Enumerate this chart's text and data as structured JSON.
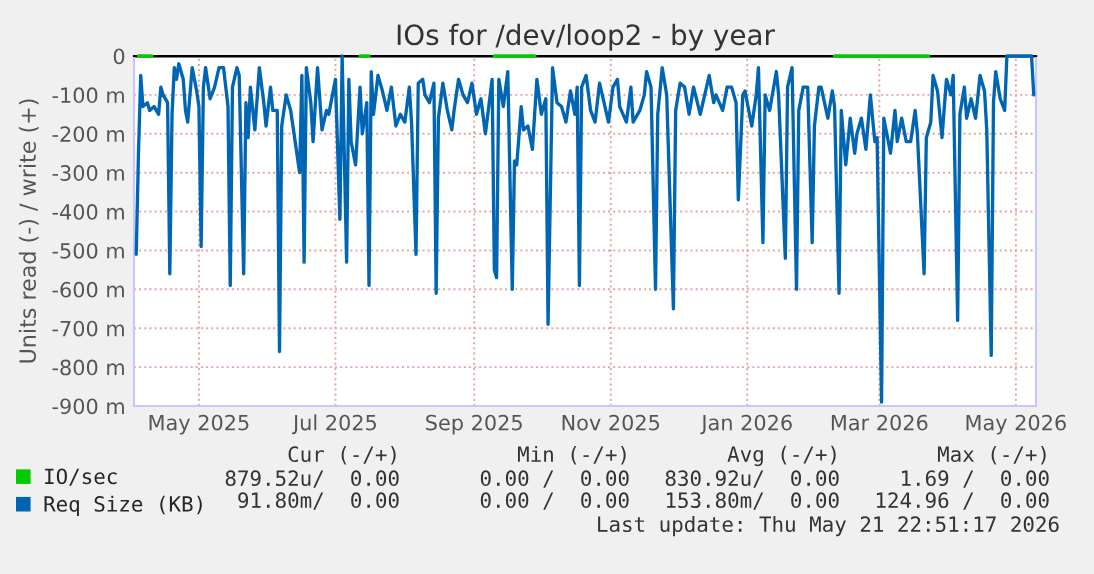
{
  "chart_data": {
    "type": "line",
    "title": "IOs for /dev/loop2 - by year",
    "ylabel": "Units read (-) / write (+)",
    "xlim": [
      "2025-04-17",
      "2026-05-25"
    ],
    "xticks": [
      {
        "value": "2025-05-16",
        "label": "May 2025"
      },
      {
        "value": "2025-07-16",
        "label": "Jul 2025"
      },
      {
        "value": "2025-09-16",
        "label": "Sep 2025"
      },
      {
        "value": "2025-11-16",
        "label": "Nov 2025"
      },
      {
        "value": "2026-01-16",
        "label": "Jan 2026"
      },
      {
        "value": "2026-03-16",
        "label": "Mar 2026"
      },
      {
        "value": "2026-05-16",
        "label": "May 2026"
      }
    ],
    "ylim": [
      -900,
      0
    ],
    "yticks": [
      {
        "value": -900,
        "label": "-900 m"
      },
      {
        "value": -800,
        "label": "-800 m"
      },
      {
        "value": -700,
        "label": "-700 m"
      },
      {
        "value": -600,
        "label": "-600 m"
      },
      {
        "value": -500,
        "label": "-500 m"
      },
      {
        "value": -400,
        "label": "-400 m"
      },
      {
        "value": -300,
        "label": "-300 m"
      },
      {
        "value": -200,
        "label": "-200 m"
      },
      {
        "value": -100,
        "label": "-100 m"
      },
      {
        "value": 0,
        "label": "0"
      }
    ],
    "grid": true,
    "legend": "bottom",
    "marker": "none",
    "line_style": "solid",
    "series": [
      {
        "name": "IO/sec",
        "color": "#00cc00",
        "x": [
          "2025-04-19",
          "2025-04-25",
          "2025-04-26",
          "2025-07-27",
          "2025-07-31",
          "2025-08-01",
          "2025-09-25",
          "2025-10-13",
          "2025-10-14",
          "2026-02-24",
          "2026-04-07"
        ],
        "values": [
          0,
          0,
          null,
          0,
          0,
          null,
          0,
          0,
          null,
          0,
          0
        ]
      },
      {
        "name": "Req Size (KB)",
        "color": "#0066b3",
        "x": [
          "2025-04-18",
          "2025-04-19",
          "2025-04-20",
          "2025-04-21",
          "2025-04-23",
          "2025-04-24",
          "2025-04-26",
          "2025-04-28",
          "2025-04-29",
          "2025-04-30",
          "2025-05-02",
          "2025-05-03",
          "2025-05-04",
          "2025-05-05",
          "2025-05-06",
          "2025-05-07",
          "2025-05-09",
          "2025-05-10",
          "2025-05-11",
          "2025-05-13",
          "2025-05-15",
          "2025-05-16",
          "2025-05-17",
          "2025-05-18",
          "2025-05-19",
          "2025-05-21",
          "2025-05-23",
          "2025-05-25",
          "2025-05-27",
          "2025-05-29",
          "2025-05-30",
          "2025-05-31",
          "2025-06-02",
          "2025-06-03",
          "2025-06-05",
          "2025-06-06",
          "2025-06-07",
          "2025-06-08",
          "2025-06-10",
          "2025-06-12",
          "2025-06-14",
          "2025-06-15",
          "2025-06-17",
          "2025-06-18",
          "2025-06-20",
          "2025-06-21",
          "2025-06-22",
          "2025-06-24",
          "2025-06-26",
          "2025-06-28",
          "2025-06-30",
          "2025-07-01",
          "2025-07-02",
          "2025-07-03",
          "2025-07-05",
          "2025-07-06",
          "2025-07-08",
          "2025-07-10",
          "2025-07-12",
          "2025-07-13",
          "2025-07-16",
          "2025-07-18",
          "2025-07-19",
          "2025-07-21",
          "2025-07-22",
          "2025-07-23",
          "2025-07-25",
          "2025-07-27",
          "2025-07-28",
          "2025-07-30",
          "2025-07-31",
          "2025-08-01",
          "2025-08-02",
          "2025-08-04",
          "2025-08-06",
          "2025-08-08",
          "2025-08-10",
          "2025-08-12",
          "2025-08-14",
          "2025-08-16",
          "2025-08-18",
          "2025-08-19",
          "2025-08-21",
          "2025-08-22",
          "2025-08-24",
          "2025-08-25",
          "2025-08-27",
          "2025-08-29",
          "2025-08-30",
          "2025-08-31",
          "2025-09-02",
          "2025-09-04",
          "2025-09-06",
          "2025-09-07",
          "2025-09-09",
          "2025-09-11",
          "2025-09-13",
          "2025-09-15",
          "2025-09-17",
          "2025-09-19",
          "2025-09-21",
          "2025-09-24",
          "2025-09-25",
          "2025-09-26",
          "2025-09-27",
          "2025-09-29",
          "2025-10-01",
          "2025-10-03",
          "2025-10-04",
          "2025-10-05",
          "2025-10-07",
          "2025-10-08",
          "2025-10-10",
          "2025-10-12",
          "2025-10-14",
          "2025-10-16",
          "2025-10-18",
          "2025-10-19",
          "2025-10-21",
          "2025-10-23",
          "2025-10-25",
          "2025-10-27",
          "2025-10-29",
          "2025-10-31",
          "2025-11-01",
          "2025-11-02",
          "2025-11-03",
          "2025-11-05",
          "2025-11-07",
          "2025-11-09",
          "2025-11-11",
          "2025-11-13",
          "2025-11-15",
          "2025-11-17",
          "2025-11-19",
          "2025-11-20",
          "2025-11-23",
          "2025-11-25",
          "2025-11-26",
          "2025-11-29",
          "2025-12-01",
          "2025-12-02",
          "2025-12-04",
          "2025-12-06",
          "2025-12-07",
          "2025-12-09",
          "2025-12-11",
          "2025-12-14",
          "2025-12-15",
          "2025-12-17",
          "2025-12-19",
          "2025-12-21",
          "2025-12-23",
          "2025-12-26",
          "2025-12-28",
          "2025-12-30",
          "2026-01-01",
          "2026-01-02",
          "2026-01-05",
          "2026-01-07",
          "2026-01-09",
          "2026-01-11",
          "2026-01-12",
          "2026-01-14",
          "2026-01-15",
          "2026-01-18",
          "2026-01-20",
          "2026-01-21",
          "2026-01-23",
          "2026-01-24",
          "2026-01-26",
          "2026-01-29",
          "2026-01-30",
          "2026-02-02",
          "2026-02-03",
          "2026-02-05",
          "2026-02-07",
          "2026-02-08",
          "2026-02-10",
          "2026-02-12",
          "2026-02-14",
          "2026-02-15",
          "2026-02-17",
          "2026-02-18",
          "2026-02-21",
          "2026-02-23",
          "2026-02-24",
          "2026-02-26",
          "2026-02-27",
          "2026-03-01",
          "2026-03-03",
          "2026-03-05",
          "2026-03-06",
          "2026-03-08",
          "2026-03-10",
          "2026-03-12",
          "2026-03-14",
          "2026-03-15",
          "2026-03-17",
          "2026-03-18",
          "2026-03-20",
          "2026-03-21",
          "2026-03-23",
          "2026-03-24",
          "2026-03-26",
          "2026-03-28",
          "2026-03-30",
          "2026-04-01",
          "2026-04-02",
          "2026-04-05",
          "2026-04-06",
          "2026-04-08",
          "2026-04-09",
          "2026-04-11",
          "2026-04-13",
          "2026-04-15",
          "2026-04-17",
          "2026-04-18",
          "2026-04-20",
          "2026-04-21",
          "2026-04-23",
          "2026-04-24",
          "2026-04-26",
          "2026-04-28",
          "2026-04-30",
          "2026-05-02",
          "2026-05-03",
          "2026-05-05",
          "2026-05-06",
          "2026-05-07",
          "2026-05-09",
          "2026-05-11",
          "2026-05-12",
          "2026-05-23",
          "2026-05-24"
        ],
        "values": [
          -510,
          -250,
          -50,
          -130,
          -120,
          -140,
          -130,
          -150,
          -80,
          -100,
          -120,
          -560,
          -150,
          -30,
          -60,
          -20,
          -60,
          -140,
          -170,
          -30,
          -90,
          -130,
          -490,
          -80,
          -30,
          -110,
          -80,
          -30,
          -30,
          -130,
          -590,
          -80,
          -30,
          -50,
          -560,
          -120,
          -210,
          -80,
          -190,
          -30,
          -120,
          -180,
          -80,
          -140,
          -140,
          -760,
          -180,
          -100,
          -140,
          -220,
          -300,
          -50,
          -530,
          -30,
          -120,
          -220,
          -30,
          -190,
          -140,
          -150,
          -60,
          -420,
          0,
          -530,
          -60,
          -220,
          -280,
          -80,
          -200,
          -120,
          -590,
          -40,
          -150,
          -50,
          -90,
          -140,
          -80,
          -180,
          -150,
          -170,
          -80,
          -170,
          -510,
          -70,
          -60,
          -100,
          -120,
          -70,
          -610,
          -160,
          -70,
          -140,
          -190,
          -140,
          -60,
          -100,
          -120,
          -70,
          -150,
          -110,
          -200,
          -60,
          -550,
          -570,
          -60,
          -130,
          -40,
          -600,
          -270,
          -280,
          -130,
          -190,
          -180,
          -240,
          -60,
          -150,
          -110,
          -690,
          -30,
          -120,
          -130,
          -170,
          -90,
          -150,
          -80,
          -590,
          -80,
          -50,
          -140,
          -170,
          -70,
          -120,
          -170,
          -80,
          -60,
          -130,
          -170,
          -80,
          -170,
          -140,
          -100,
          -40,
          -80,
          -600,
          -150,
          -30,
          -100,
          -650,
          -140,
          -70,
          -80,
          -150,
          -80,
          -150,
          -100,
          -50,
          -120,
          -100,
          -140,
          -80,
          -80,
          -120,
          -370,
          -100,
          -90,
          -180,
          -100,
          -30,
          -480,
          -100,
          -140,
          -40,
          -100,
          -520,
          -80,
          -30,
          -600,
          -140,
          -80,
          -80,
          -480,
          -180,
          -80,
          -80,
          -160,
          -90,
          -130,
          -610,
          -140,
          -280,
          -160,
          -250,
          -200,
          -160,
          -240,
          -100,
          -220,
          -210,
          -890,
          -160,
          -220,
          -250,
          -140,
          -220,
          -160,
          -220,
          -220,
          -140,
          -200,
          -560,
          -210,
          -170,
          -50,
          -90,
          -210,
          -60,
          -100,
          -50,
          -680,
          -150,
          -80,
          -160,
          -110,
          -160,
          -50,
          -90,
          -190,
          -770,
          -120,
          -40,
          -110,
          -140,
          0,
          0,
          -100
        ]
      }
    ],
    "annotations": [
      "Cur (-/+)",
      "Min (-/+)",
      "Avg (-/+)",
      "Max (-/+)",
      "879.52u/  0.00",
      "0.00 /  0.00",
      "830.92u/  0.00",
      "1.69 /  0.00",
      "91.80m/  0.00",
      "0.00 /  0.00",
      "153.80m/  0.00",
      "124.96 /  0.00",
      "Last update: Thu May 21 22:51:17 2026"
    ]
  }
}
